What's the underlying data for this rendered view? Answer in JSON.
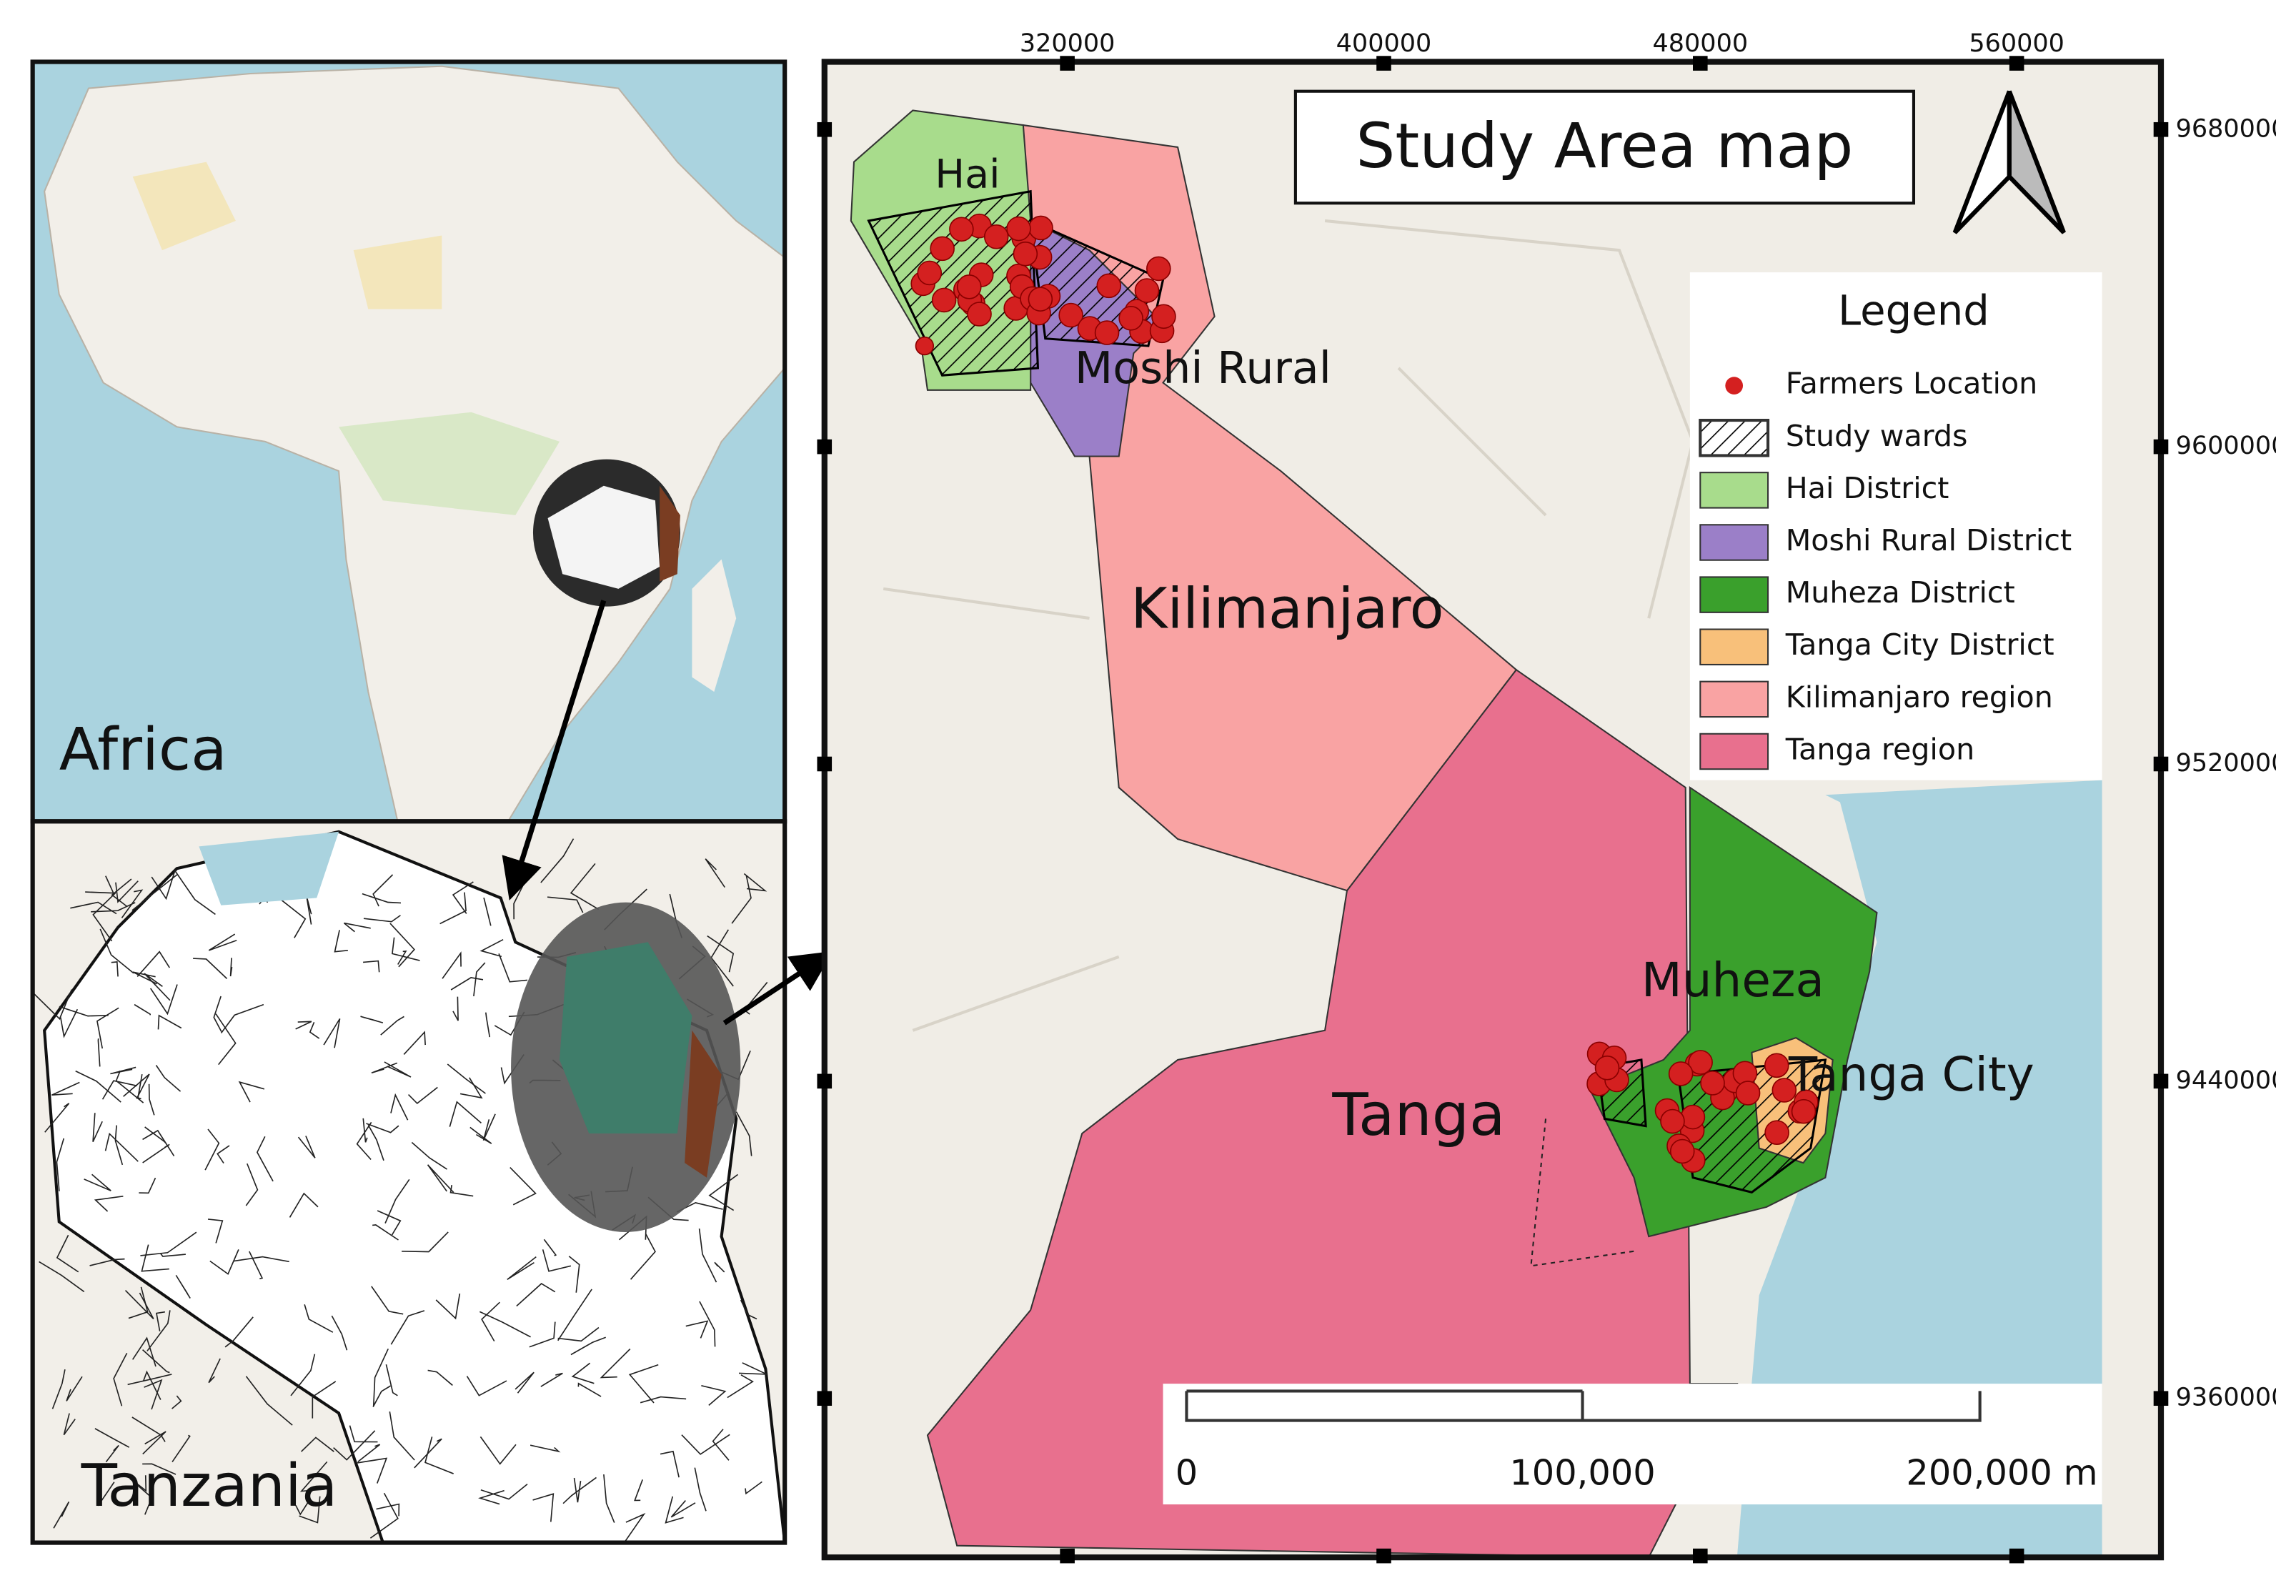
{
  "insets": [
    {
      "label": "Africa"
    },
    {
      "label": "Tanzania"
    }
  ],
  "main_map": {
    "title": "Study Area map",
    "x_ticks": [
      320000,
      400000,
      480000,
      560000
    ],
    "y_ticks": [
      9680000,
      9600000,
      9520000,
      9440000,
      9360000
    ],
    "place_labels": [
      "Hai",
      "Moshi Rural",
      "Kilimanjaro",
      "Muheza",
      "Tanga",
      "Tanga City"
    ],
    "legend": {
      "title": "Legend",
      "items": [
        {
          "label": "Farmers Location",
          "symbol": "point",
          "color": "#d42020"
        },
        {
          "label": "Study wards",
          "symbol": "hatch",
          "color": "#000000"
        },
        {
          "label": "Hai District",
          "symbol": "fill",
          "color": "#a8dc8c"
        },
        {
          "label": "Moshi Rural District",
          "symbol": "fill",
          "color": "#9b7fc8"
        },
        {
          "label": "Muheza District",
          "symbol": "fill",
          "color": "#3aa02c"
        },
        {
          "label": "Tanga City District",
          "symbol": "fill",
          "color": "#f8c07a"
        },
        {
          "label": "Kilimanjaro region",
          "symbol": "fill",
          "color": "#f9a3a3"
        },
        {
          "label": "Tanga region",
          "symbol": "fill",
          "color": "#e8708e"
        }
      ]
    },
    "scale_bar": [
      "0",
      "100,000",
      "200,000 m"
    ]
  }
}
